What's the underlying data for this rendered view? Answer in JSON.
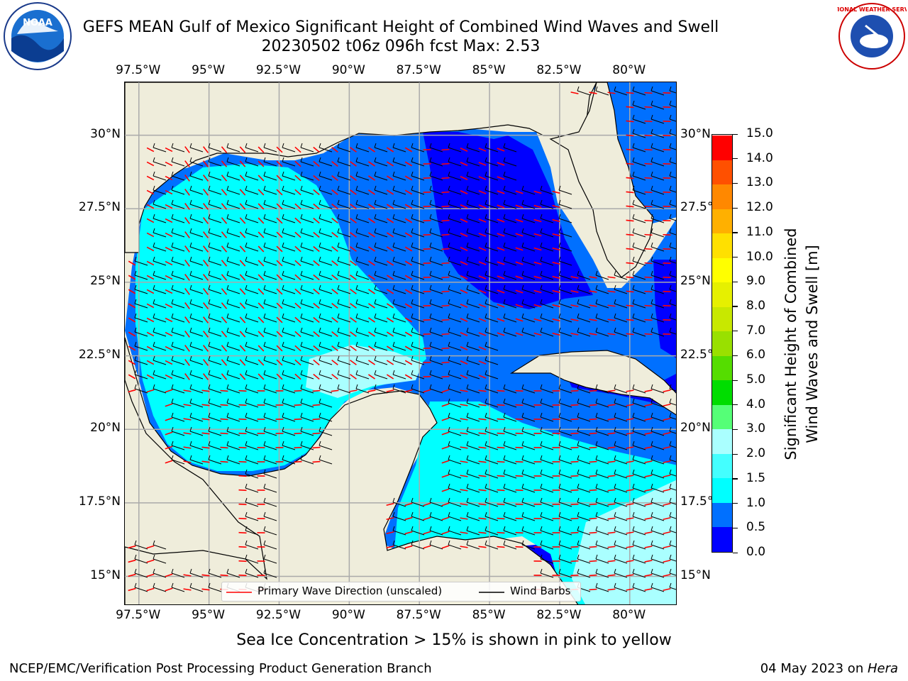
{
  "title": {
    "line1": "GEFS MEAN Gulf of Mexico Significant Height of Combined Wind Waves and Swell",
    "line2": "20230502 t06z 096h fcst   Max: 2.53"
  },
  "map": {
    "lon_ticks": [
      "97.5°W",
      "95°W",
      "92.5°W",
      "90°W",
      "87.5°W",
      "85°W",
      "82.5°W",
      "80°W"
    ],
    "lat_ticks": [
      "30°N",
      "27.5°N",
      "25°N",
      "22.5°N",
      "20°N",
      "17.5°N",
      "15°N"
    ],
    "lon_range": [
      -98,
      -78.3
    ],
    "lat_range": [
      14,
      31.8
    ],
    "grid": true
  },
  "legend": {
    "wave_direction": "Primary Wave Direction (unscaled)",
    "wind_barbs": "Wind Barbs"
  },
  "colorbar": {
    "label_line1": "Significant Height of Combined",
    "label_line2": "Wind Waves and Swell [m]",
    "ticks": [
      "0.0",
      "0.5",
      "1.0",
      "1.5",
      "2.0",
      "3.0",
      "4.0",
      "5.0",
      "6.0",
      "7.0",
      "8.0",
      "9.0",
      "10.0",
      "11.0",
      "12.0",
      "13.0",
      "14.0",
      "15.0"
    ],
    "colors": [
      "#0000ff",
      "#0070ff",
      "#00ffff",
      "#44ffff",
      "#aaffff",
      "#55ff77",
      "#00dd00",
      "#55dd00",
      "#99e000",
      "#c8e800",
      "#e6f000",
      "#ffff00",
      "#ffe000",
      "#ffb000",
      "#ff8800",
      "#ff5000",
      "#ff0000"
    ]
  },
  "colors": {
    "land": "#efeddb",
    "deep_blue": "#0000ff",
    "mid_blue": "#0070ff",
    "cyan": "#00ffff",
    "light_cyan": "#aaffff",
    "arrow": "#ff0000",
    "barb": "#000000"
  },
  "caption": "Sea Ice Concentration > 15% is shown in pink to yellow",
  "footer": {
    "left": "NCEP/EMC/Verification Post Processing Product Generation Branch",
    "date": "04 May 2023 on ",
    "host": "Hera"
  },
  "logos": {
    "noaa_text": "NOAA",
    "nws_text": "NATIONAL WEATHER SERVICE"
  }
}
